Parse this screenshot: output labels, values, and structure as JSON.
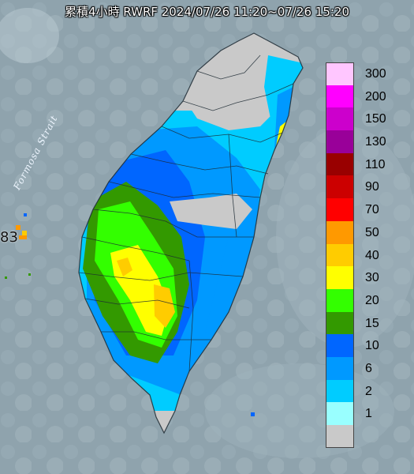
{
  "title": "累積4小時 RWRF 2024/07/26 11:20~07/26 15:20",
  "strait_label": "Formosa Strait",
  "edge_value": "83",
  "colors": {
    "sea": "#8fa3ad",
    "land_none": "#c9c9c9"
  },
  "legend": [
    {
      "label": "300",
      "color": "#ffc6ff"
    },
    {
      "label": "200",
      "color": "#ff00ff"
    },
    {
      "label": "150",
      "color": "#cc00cc"
    },
    {
      "label": "130",
      "color": "#990099"
    },
    {
      "label": "110",
      "color": "#990000"
    },
    {
      "label": "90",
      "color": "#cc0000"
    },
    {
      "label": "70",
      "color": "#ff0000"
    },
    {
      "label": "50",
      "color": "#ff9900"
    },
    {
      "label": "40",
      "color": "#ffcc00"
    },
    {
      "label": "30",
      "color": "#ffff00"
    },
    {
      "label": "20",
      "color": "#33ff00"
    },
    {
      "label": "15",
      "color": "#339900"
    },
    {
      "label": "10",
      "color": "#0066ff"
    },
    {
      "label": "6",
      "color": "#0099ff"
    },
    {
      "label": "2",
      "color": "#00ccff"
    },
    {
      "label": "1",
      "color": "#99ffff"
    },
    {
      "label": "",
      "color": "#c9c9c9"
    }
  ]
}
